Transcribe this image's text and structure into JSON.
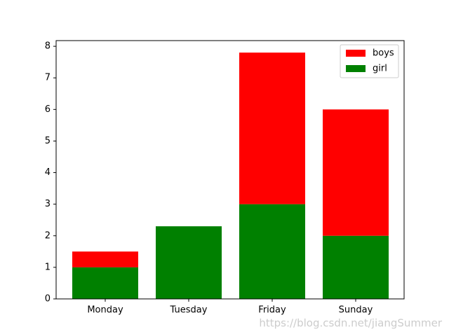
{
  "chart_data": {
    "type": "stacked-bar",
    "categories": [
      "Monday",
      "Tuesday",
      "Friday",
      "Sunday"
    ],
    "series": [
      {
        "name": "boys",
        "color": "#ff0000",
        "values": [
          0.5,
          0,
          4.8,
          4
        ]
      },
      {
        "name": "girl",
        "color": "#008000",
        "values": [
          1,
          2.3,
          3,
          2
        ]
      }
    ],
    "ylim": [
      0,
      8.18
    ],
    "yticks": [
      0,
      1,
      2,
      3,
      4,
      5,
      6,
      7,
      8
    ],
    "legend": "upper-right",
    "watermark": "https://blog.csdn.net/jiangSummer"
  }
}
